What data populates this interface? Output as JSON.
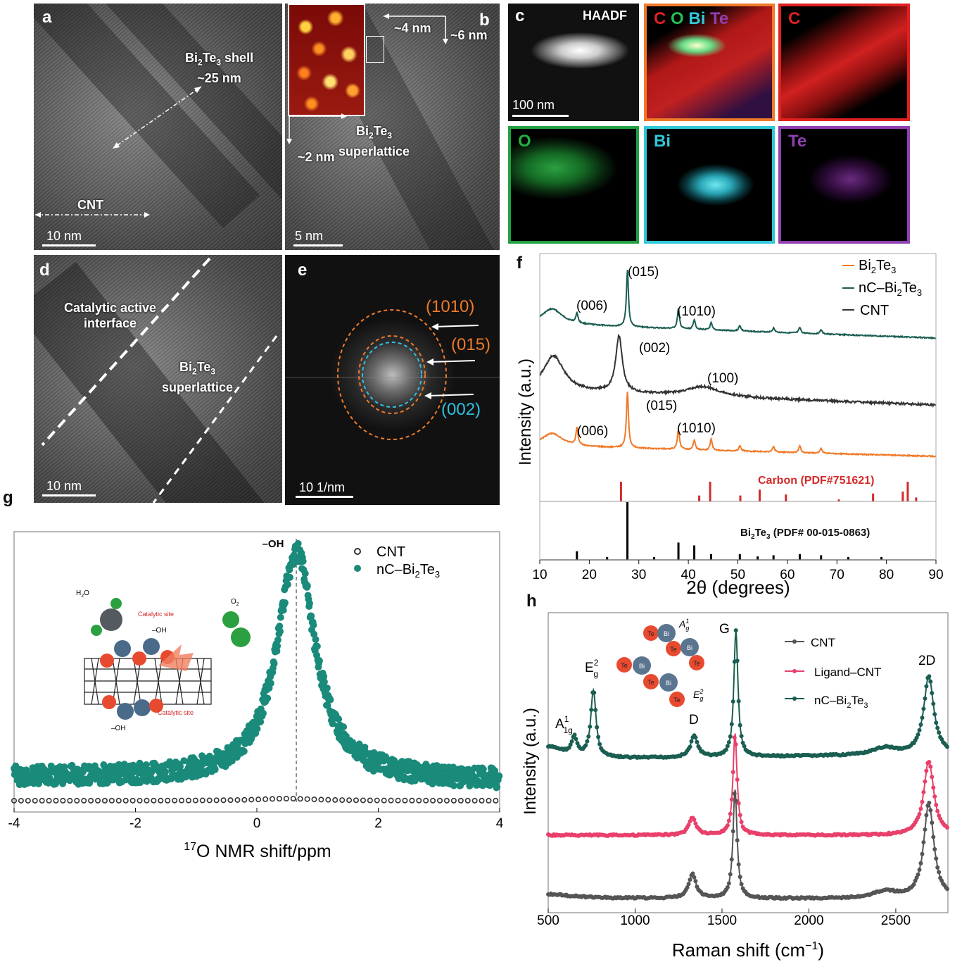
{
  "panel_a": {
    "label": "a",
    "shell_label_1": "Bi",
    "shell_label_2": "Te",
    "shell_label_3": " shell",
    "shell_label_sub1": "2",
    "shell_label_sub2": "3",
    "shell_size": "~25 nm",
    "cnt_label": "CNT",
    "scale": "10 nm"
  },
  "panel_b": {
    "label": "b",
    "dim1": "~4 nm",
    "dim2": "~6 nm",
    "dim3": "~2 nm",
    "sl_line1_a": "Bi",
    "sl_line1_sub1": "2",
    "sl_line1_b": "Te",
    "sl_line1_sub2": "3",
    "sl_line2": "superlattice",
    "scale": "5 nm"
  },
  "panel_c": {
    "label": "c",
    "haadf": "HAADF",
    "scale": "100 nm",
    "maps": [
      {
        "label_c": "C",
        "label_o": "O",
        "label_bi": "Bi",
        "label_te": "Te"
      },
      {
        "label": "C",
        "color": "#e02020"
      },
      {
        "label": "O",
        "color": "#22a040"
      },
      {
        "label": "Bi",
        "color": "#30c8d8"
      },
      {
        "label": "Te",
        "color": "#9040b0"
      }
    ]
  },
  "panel_d": {
    "label": "d",
    "interface_1": "Catalytic active",
    "interface_2": "interface",
    "sl_a": "Bi",
    "sl_sub1": "2",
    "sl_b": "Te",
    "sl_sub2": "3",
    "sl_2": "superlattice",
    "scale": "10 nm"
  },
  "panel_e": {
    "label": "e",
    "ring1": "(1010)",
    "ring2": "(015)",
    "ring3": "(002)",
    "scale": "10 1/nm",
    "orange": "#f07a28",
    "cyan": "#30c0e0"
  },
  "panel_f": {
    "label": "f",
    "chart_data": {
      "type": "line",
      "xlabel": "2θ (degrees)",
      "ylabel": "Intensity (a.u.)",
      "xlim": [
        10,
        90
      ],
      "xticks": [
        "10",
        "20",
        "30",
        "40",
        "50",
        "60",
        "70",
        "80",
        "90"
      ],
      "legend": [
        {
          "name_a": "Bi",
          "sub1": "2",
          "name_b": "Te",
          "sub2": "3",
          "color": "#f07a28"
        },
        {
          "name_a": "nC–Bi",
          "sub1": "2",
          "name_b": "Te",
          "sub2": "3",
          "color": "#1a5e52"
        },
        {
          "name_a": "CNT",
          "sub1": "",
          "name_b": "",
          "sub2": "",
          "color": "#333333"
        }
      ],
      "series": [
        {
          "color": "#1a5e52",
          "baseline": 0,
          "peaks": [
            [
              12.5,
              22
            ],
            [
              17.5,
              14
            ],
            [
              27.7,
              80
            ],
            [
              38.0,
              28
            ],
            [
              41.2,
              14
            ],
            [
              44.6,
              10
            ],
            [
              50.4,
              8
            ],
            [
              57.2,
              6
            ],
            [
              62.5,
              8
            ],
            [
              66.8,
              6
            ]
          ]
        },
        {
          "color": "#333333",
          "baseline": 0,
          "peaks": [
            [
              12.8,
              50
            ],
            [
              26.0,
              80
            ],
            [
              43.0,
              14
            ]
          ]
        },
        {
          "color": "#f07a28",
          "baseline": 0,
          "peaks": [
            [
              12.5,
              18
            ],
            [
              17.5,
              24
            ],
            [
              27.7,
              80
            ],
            [
              38.0,
              28
            ],
            [
              41.2,
              14
            ],
            [
              44.6,
              16
            ],
            [
              50.4,
              8
            ],
            [
              57.2,
              8
            ],
            [
              62.5,
              10
            ],
            [
              66.8,
              7
            ]
          ]
        }
      ],
      "annotations": [
        {
          "text": "(006)",
          "series": 0
        },
        {
          "text": "(015)",
          "series": 0
        },
        {
          "text": "(1010)",
          "series": 0
        },
        {
          "text": "(002)",
          "series": 1
        },
        {
          "text": "(100)",
          "series": 1
        },
        {
          "text": "(006)",
          "series": 2
        },
        {
          "text": "(015)",
          "series": 2
        },
        {
          "text": "(1010)",
          "series": 2
        }
      ],
      "reference_carbon": {
        "label": "Carbon (PDF#751621)",
        "color": "#d42a2a",
        "lines": [
          [
            26.4,
            1.0
          ],
          [
            42.2,
            0.3
          ],
          [
            44.4,
            1.0
          ],
          [
            50.5,
            0.3
          ],
          [
            54.4,
            0.6
          ],
          [
            59.7,
            0.35
          ],
          [
            70.4,
            0.1
          ],
          [
            77.3,
            0.4
          ],
          [
            83.3,
            0.5
          ],
          [
            84.3,
            1.0
          ],
          [
            86.0,
            0.2
          ]
        ]
      },
      "reference_bi2te3": {
        "label_a": "Bi",
        "sub1": "2",
        "label_b": "Te",
        "sub2": "3",
        "label_c": " (PDF# 00-015-0863)",
        "color": "#000000",
        "lines": [
          [
            17.5,
            0.15
          ],
          [
            23.6,
            0.05
          ],
          [
            27.7,
            1.0
          ],
          [
            33.1,
            0.05
          ],
          [
            38.0,
            0.3
          ],
          [
            41.2,
            0.25
          ],
          [
            44.6,
            0.1
          ],
          [
            50.4,
            0.1
          ],
          [
            54.0,
            0.06
          ],
          [
            57.2,
            0.08
          ],
          [
            62.5,
            0.1
          ],
          [
            66.8,
            0.08
          ],
          [
            72.3,
            0.05
          ],
          [
            79.0,
            0.05
          ]
        ]
      }
    }
  },
  "panel_g": {
    "label": "g",
    "chart_data": {
      "type": "scatter",
      "xlabel_sup": "17",
      "xlabel": "O NMR shift/ppm",
      "xlim": [
        -4,
        4
      ],
      "xticks": [
        "-4",
        "-2",
        "0",
        "2",
        "4"
      ],
      "peak_label": "–OH",
      "peak_position": 0.65,
      "legend": [
        {
          "name_a": "CNT",
          "sub1": "",
          "name_b": "",
          "sub2": ""
        },
        {
          "name_a": "nC–Bi",
          "sub1": "2",
          "name_b": "Te",
          "sub2": "3"
        }
      ],
      "series": [
        {
          "color": "#333333",
          "style": "open-circle"
        },
        {
          "color": "#1a8a7a",
          "style": "filled-circle"
        }
      ],
      "inset": {
        "h2o": "H",
        "h2o_sub": "2",
        "h2o_b": "O",
        "o2": "O",
        "o2_sub": "2",
        "site1": "Catalytic site",
        "site2": "Catalytic site",
        "oh1": "–OH",
        "oh2": "–OH"
      }
    }
  },
  "panel_h": {
    "label": "h",
    "chart_data": {
      "type": "line",
      "xlabel": "Raman shift (cm",
      "xlabel_sup": "−1",
      "xlabel_end": ")",
      "ylabel": "Intensity (a.u.)",
      "xlim": [
        500,
        2800
      ],
      "xticks": [
        "500",
        "1000",
        "1500",
        "2000",
        "2500"
      ],
      "legend": [
        {
          "name_a": "CNT",
          "sub1": "",
          "name_b": "",
          "sub2": "",
          "color": "#555555"
        },
        {
          "name_a": "Ligand–CNT",
          "sub1": "",
          "name_b": "",
          "sub2": "",
          "color": "#e8406a"
        },
        {
          "name_a": "nC–Bi",
          "sub1": "2",
          "name_b": "Te",
          "sub2": "3",
          "color": "#1a5e52"
        }
      ],
      "series": [
        {
          "color": "#1a5e52",
          "peaks": [
            [
              650,
              25
            ],
            [
              760,
              95
            ],
            [
              1340,
              30
            ],
            [
              1580,
              180
            ],
            [
              2440,
              10
            ],
            [
              2690,
              110
            ]
          ]
        },
        {
          "color": "#e8406a",
          "peaks": [
            [
              1330,
              25
            ],
            [
              1575,
              145
            ],
            [
              2690,
              105
            ]
          ]
        },
        {
          "color": "#555555",
          "peaks": [
            [
              1330,
              35
            ],
            [
              1575,
              155
            ],
            [
              2440,
              10
            ],
            [
              2690,
              135
            ]
          ]
        }
      ],
      "peak_labels": [
        {
          "main": "A",
          "sup": "1",
          "sub": "1g"
        },
        {
          "main": "E",
          "sup": "2",
          "sub": "g"
        },
        {
          "main": "D",
          "sup": "",
          "sub": ""
        },
        {
          "main": "G",
          "sup": "",
          "sub": ""
        },
        {
          "main": "2D",
          "sup": "",
          "sub": ""
        }
      ],
      "inset": {
        "te": "Te",
        "bi": "Bi",
        "a1g": "A",
        "a1g_sup": "1",
        "a1g_sub": "g",
        "eg": "E",
        "eg_sup": "2",
        "eg_sub": "g"
      }
    }
  }
}
